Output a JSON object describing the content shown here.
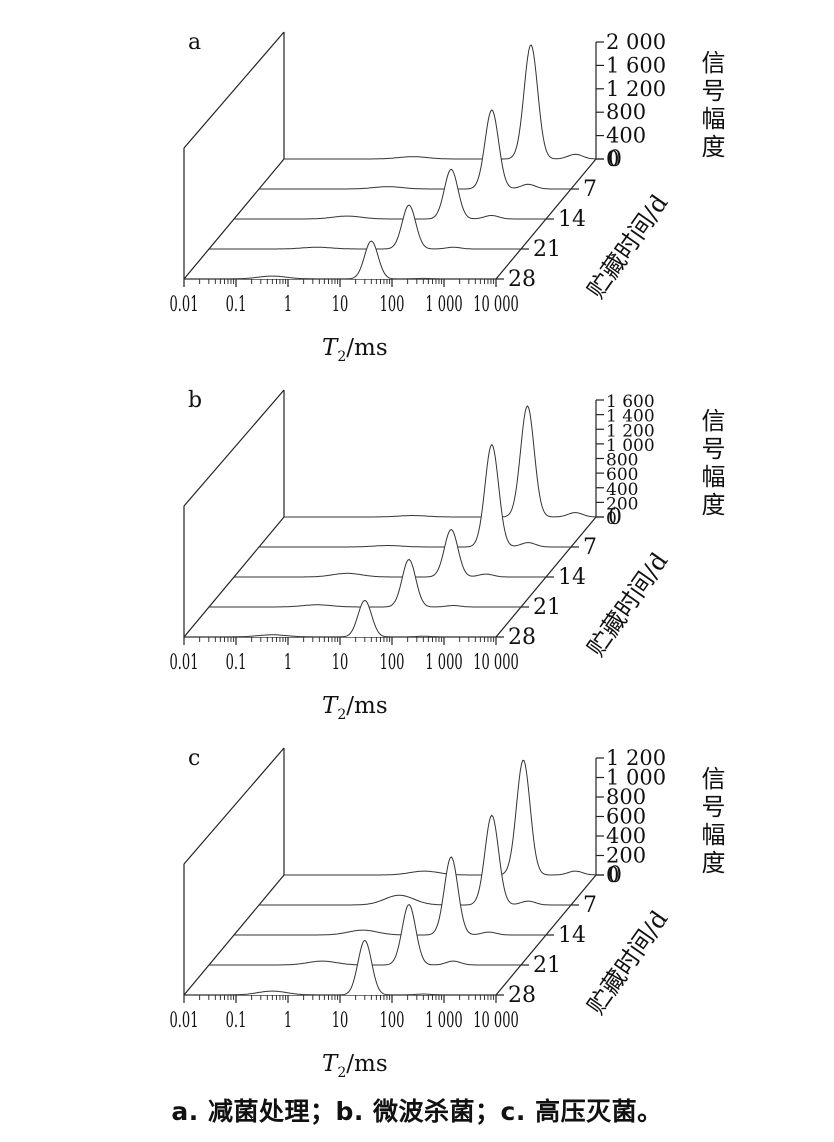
{
  "figure": {
    "caption": "a. 减菌处理；b. 微波杀菌；c. 高压灭菌。"
  },
  "chart_data": [
    {
      "type": "area",
      "panel_label": "a",
      "xlabel_italic": "T",
      "xlabel_sub": "2",
      "xlabel_unit": "/ms",
      "xscale": "log",
      "xlim": [
        0.01,
        10000
      ],
      "x_ticks": [
        0.01,
        0.1,
        1,
        10,
        100,
        1000,
        10000
      ],
      "x_tick_labels": [
        "0.01",
        "0.1",
        "1",
        "10",
        "100",
        "1 000",
        "10 000"
      ],
      "zlabel": "信号幅度",
      "zlim": [
        0,
        2000
      ],
      "z_ticks": [
        0,
        400,
        800,
        1200,
        1600,
        2000
      ],
      "z_tick_labels": [
        "0",
        "400",
        "800",
        "1 200",
        "1 600",
        "2 000"
      ],
      "ylabel": "贮藏时间/d",
      "y_ticks": [
        0,
        7,
        14,
        21,
        28
      ],
      "y_tick_labels": [
        "0",
        "7",
        "14",
        "21",
        "28"
      ],
      "series": [
        {
          "name": "0",
          "peaks": [
            {
              "t2": 3,
              "amp": 40,
              "w": 0.28
            },
            {
              "t2": 560,
              "amp": 1950,
              "w": 0.13
            },
            {
              "t2": 4000,
              "amp": 80,
              "w": 0.14
            }
          ]
        },
        {
          "name": "7",
          "peaks": [
            {
              "t2": 3,
              "amp": 40,
              "w": 0.28
            },
            {
              "t2": 300,
              "amp": 1350,
              "w": 0.13
            },
            {
              "t2": 1500,
              "amp": 80,
              "w": 0.14
            }
          ]
        },
        {
          "name": "14",
          "peaks": [
            {
              "t2": 1.5,
              "amp": 50,
              "w": 0.28
            },
            {
              "t2": 150,
              "amp": 850,
              "w": 0.13
            },
            {
              "t2": 900,
              "amp": 60,
              "w": 0.14
            }
          ]
        },
        {
          "name": "21",
          "peaks": [
            {
              "t2": 1.2,
              "amp": 30,
              "w": 0.28
            },
            {
              "t2": 70,
              "amp": 750,
              "w": 0.13
            },
            {
              "t2": 500,
              "amp": 30,
              "w": 0.14
            }
          ]
        },
        {
          "name": "28",
          "peaks": [
            {
              "t2": 0.5,
              "amp": 50,
              "w": 0.28
            },
            {
              "t2": 40,
              "amp": 650,
              "w": 0.13
            },
            {
              "t2": 400,
              "amp": 10,
              "w": 0.14
            }
          ]
        }
      ]
    },
    {
      "type": "area",
      "panel_label": "b",
      "xlabel_italic": "T",
      "xlabel_sub": "2",
      "xlabel_unit": "/ms",
      "xscale": "log",
      "xlim": [
        0.01,
        10000
      ],
      "x_ticks": [
        0.01,
        0.1,
        1,
        10,
        100,
        1000,
        10000
      ],
      "x_tick_labels": [
        "0.01",
        "0.1",
        "1",
        "10",
        "100",
        "1 000",
        "10 000"
      ],
      "zlabel": "信号幅度",
      "zlim": [
        0,
        1600
      ],
      "z_ticks": [
        0,
        200,
        400,
        600,
        800,
        1000,
        1200,
        1400,
        1600
      ],
      "z_tick_labels": [
        "0",
        "200",
        "400",
        "600",
        "800",
        "1 000",
        "1 200",
        "1 400",
        "1 600"
      ],
      "ylabel": "贮藏时间/d",
      "y_ticks": [
        0,
        7,
        14,
        21,
        28
      ],
      "y_tick_labels": [
        "0",
        "7",
        "14",
        "21",
        "28"
      ],
      "series": [
        {
          "name": "0",
          "peaks": [
            {
              "t2": 3,
              "amp": 20,
              "w": 0.28
            },
            {
              "t2": 480,
              "amp": 1520,
              "w": 0.13
            },
            {
              "t2": 4000,
              "amp": 60,
              "w": 0.14
            }
          ]
        },
        {
          "name": "7",
          "peaks": [
            {
              "t2": 3,
              "amp": 20,
              "w": 0.28
            },
            {
              "t2": 300,
              "amp": 1400,
              "w": 0.13
            },
            {
              "t2": 1500,
              "amp": 60,
              "w": 0.14
            }
          ]
        },
        {
          "name": "14",
          "peaks": [
            {
              "t2": 1.5,
              "amp": 50,
              "w": 0.28
            },
            {
              "t2": 150,
              "amp": 650,
              "w": 0.13
            },
            {
              "t2": 700,
              "amp": 40,
              "w": 0.14
            }
          ]
        },
        {
          "name": "21",
          "peaks": [
            {
              "t2": 1.2,
              "amp": 30,
              "w": 0.28
            },
            {
              "t2": 70,
              "amp": 650,
              "w": 0.13
            },
            {
              "t2": 500,
              "amp": 20,
              "w": 0.14
            }
          ]
        },
        {
          "name": "28",
          "peaks": [
            {
              "t2": 0.5,
              "amp": 30,
              "w": 0.28
            },
            {
              "t2": 30,
              "amp": 500,
              "w": 0.13
            },
            {
              "t2": 400,
              "amp": 10,
              "w": 0.14
            }
          ]
        }
      ]
    },
    {
      "type": "area",
      "panel_label": "c",
      "xlabel_italic": "T",
      "xlabel_sub": "2",
      "xlabel_unit": "/ms",
      "xscale": "log",
      "xlim": [
        0.01,
        10000
      ],
      "x_ticks": [
        0.01,
        0.1,
        1,
        10,
        100,
        1000,
        10000
      ],
      "x_tick_labels": [
        "0.01",
        "0.1",
        "1",
        "10",
        "100",
        "1 000",
        "10 000"
      ],
      "zlabel": "信号幅度",
      "zlim": [
        0,
        1200
      ],
      "z_ticks": [
        0,
        200,
        400,
        600,
        800,
        1000,
        1200
      ],
      "z_tick_labels": [
        "0",
        "200",
        "400",
        "600",
        "800",
        "1 000",
        "1 200"
      ],
      "ylabel": "贮藏时间/d",
      "y_ticks": [
        0,
        7,
        14,
        21,
        28
      ],
      "y_tick_labels": [
        "0",
        "7",
        "14",
        "21",
        "28"
      ],
      "series": [
        {
          "name": "0",
          "peaks": [
            {
              "t2": 5,
              "amp": 40,
              "w": 0.28
            },
            {
              "t2": 400,
              "amp": 1180,
              "w": 0.13
            },
            {
              "t2": 4000,
              "amp": 40,
              "w": 0.14
            }
          ]
        },
        {
          "name": "7",
          "peaks": [
            {
              "t2": 5,
              "amp": 100,
              "w": 0.28
            },
            {
              "t2": 300,
              "amp": 920,
              "w": 0.13
            },
            {
              "t2": 1500,
              "amp": 40,
              "w": 0.14
            }
          ]
        },
        {
          "name": "14",
          "peaks": [
            {
              "t2": 3,
              "amp": 50,
              "w": 0.28
            },
            {
              "t2": 150,
              "amp": 800,
              "w": 0.13
            },
            {
              "t2": 800,
              "amp": 30,
              "w": 0.14
            }
          ]
        },
        {
          "name": "21",
          "peaks": [
            {
              "t2": 1.5,
              "amp": 40,
              "w": 0.28
            },
            {
              "t2": 70,
              "amp": 620,
              "w": 0.13
            },
            {
              "t2": 500,
              "amp": 40,
              "w": 0.14
            }
          ]
        },
        {
          "name": "28",
          "peaks": [
            {
              "t2": 0.5,
              "amp": 40,
              "w": 0.28
            },
            {
              "t2": 30,
              "amp": 560,
              "w": 0.13
            },
            {
              "t2": 400,
              "amp": 10,
              "w": 0.14
            }
          ]
        }
      ]
    }
  ]
}
